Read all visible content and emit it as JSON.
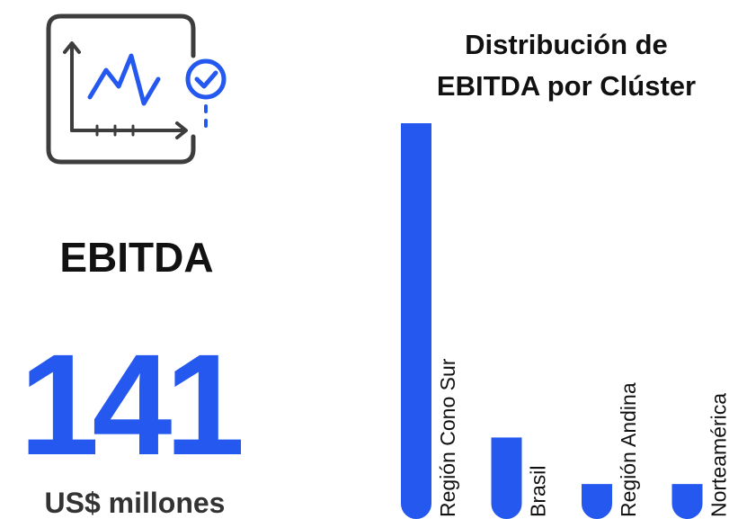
{
  "kpi": {
    "label": "EBITDA",
    "value": "141",
    "unit": "US$ millones"
  },
  "chart_data": {
    "type": "bar",
    "title": [
      "Distribución de",
      "EBITDA por Clúster"
    ],
    "categories": [
      "Región Cono Sur",
      "Brasil",
      "Región Andina",
      "Norteamérica"
    ],
    "values": [
      102,
      21,
      9,
      9
    ],
    "color": "#2458ef"
  }
}
